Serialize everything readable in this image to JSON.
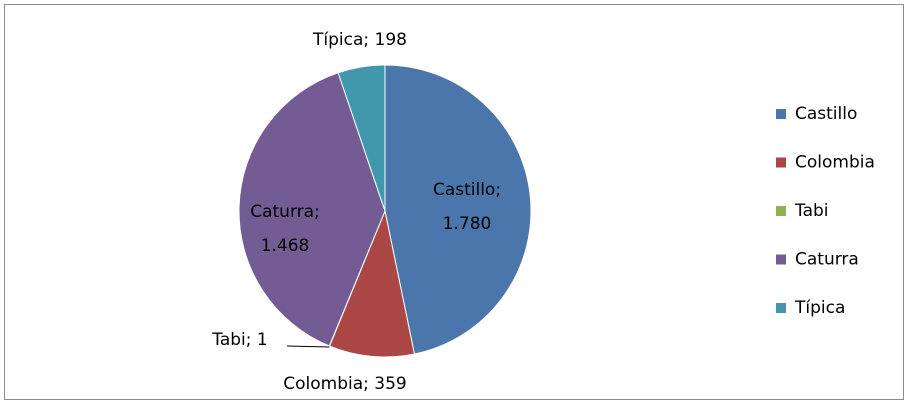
{
  "chart_data": {
    "type": "pie",
    "categories": [
      "Castillo",
      "Colombia",
      "Tabi",
      "Caturra",
      "Típica"
    ],
    "values": [
      1780,
      359,
      1,
      1468,
      198
    ],
    "value_labels": [
      "Castillo; 1.780",
      "Colombia; 359",
      "Tabi; 1",
      "Caturra; 1.468",
      "Típica; 198"
    ],
    "colors": [
      "#4a76ab",
      "#ab4744",
      "#8db255",
      "#735b93",
      "#4198ad"
    ],
    "legend": "right"
  }
}
